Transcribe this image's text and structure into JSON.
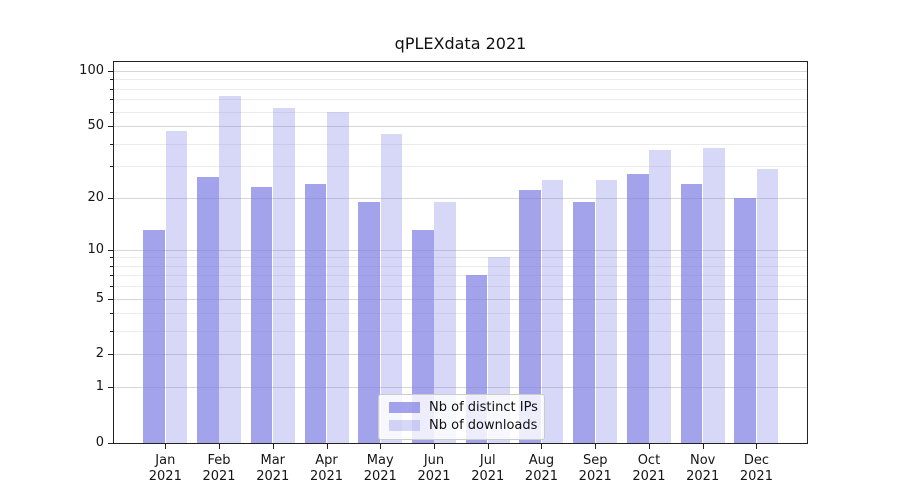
{
  "chart_data": {
    "type": "bar",
    "title": "qPLEXdata 2021",
    "categories": [
      "Jan 2021",
      "Feb 2021",
      "Mar 2021",
      "Apr 2021",
      "May 2021",
      "Jun 2021",
      "Jul 2021",
      "Aug 2021",
      "Sep 2021",
      "Oct 2021",
      "Nov 2021",
      "Dec 2021"
    ],
    "x_tick_months": [
      "Jan",
      "Feb",
      "Mar",
      "Apr",
      "May",
      "Jun",
      "Jul",
      "Aug",
      "Sep",
      "Oct",
      "Nov",
      "Dec"
    ],
    "x_tick_year": "2021",
    "series": [
      {
        "name": "Nb of distinct IPs",
        "values": [
          13,
          26,
          23,
          24,
          19,
          13,
          7,
          22,
          19,
          27,
          24,
          20
        ],
        "color": "rgba(124,124,228,0.7)",
        "color_flat": "#a3a3ec"
      },
      {
        "name": "Nb of downloads",
        "values": [
          47,
          73,
          63,
          60,
          45,
          19,
          9,
          25,
          25,
          37,
          38,
          29
        ],
        "color": "rgba(124,124,228,0.3)",
        "color_flat": "#d8d8f7"
      }
    ],
    "yscale": "log1p",
    "ylim": [
      0,
      112
    ],
    "xlabel": "",
    "ylabel": "",
    "y_major_ticks": [
      0,
      1,
      2,
      5,
      10,
      20,
      50,
      100
    ],
    "y_minor_ticks": [
      3,
      4,
      6,
      7,
      8,
      9,
      30,
      40,
      60,
      70,
      80,
      90
    ],
    "grid": true,
    "legend_position": "lower center"
  },
  "style": {
    "grid_major_color": "#d7d7d7",
    "grid_minor_color": "#ececec",
    "spine_color": "#222222",
    "text_color": "#151515",
    "legend_border_color": "#cccccc",
    "legend_bg": "rgba(255,255,255,0.8)"
  }
}
